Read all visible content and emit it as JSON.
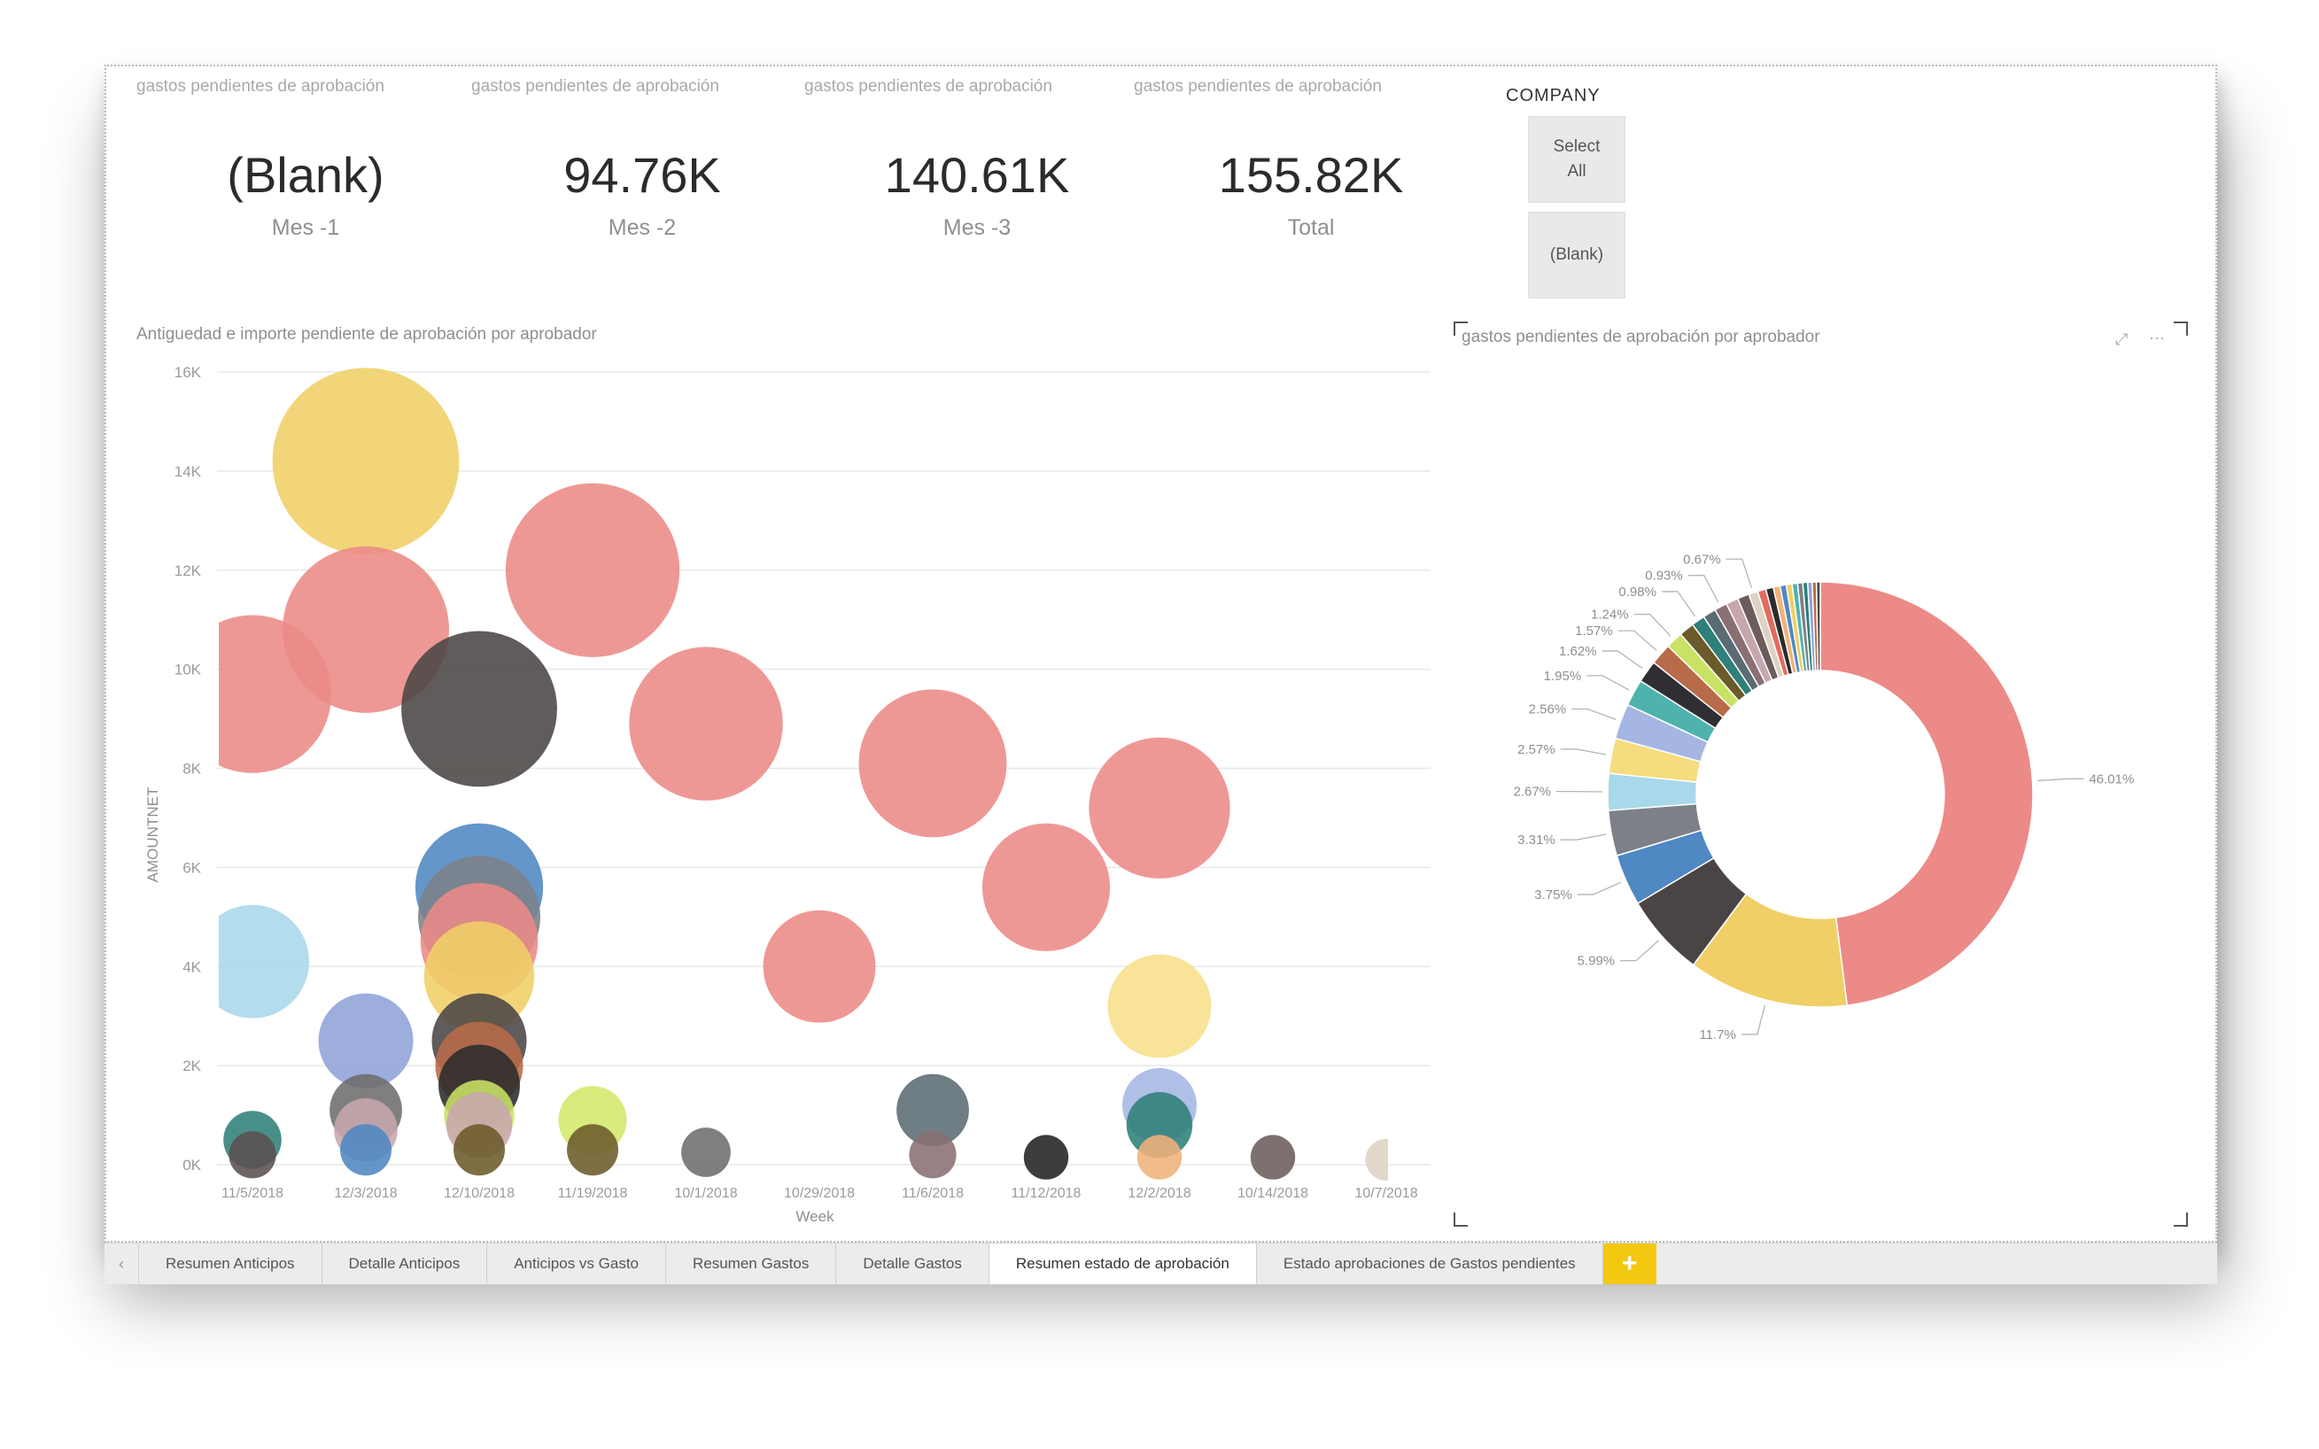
{
  "cards": [
    {
      "caption": "gastos pendientes de aprobación",
      "value": "(Blank)",
      "label": "Mes -1"
    },
    {
      "caption": "gastos pendientes de aprobación",
      "value": "94.76K",
      "label": "Mes -2"
    },
    {
      "caption": "gastos pendientes de aprobación",
      "value": "140.61K",
      "label": "Mes -3"
    },
    {
      "caption": "gastos pendientes de aprobación",
      "value": "155.82K",
      "label": "Total"
    }
  ],
  "slicer": {
    "title": "COMPANY",
    "options": [
      "Select All",
      "(Blank)"
    ]
  },
  "scatter": {
    "title": "Antiguedad e importe pendiente de aprobación por aprobador",
    "xlabel": "Week",
    "ylabel": "AMOUNTNET"
  },
  "donut": {
    "title": "gastos pendientes de aprobación por aprobador",
    "focus_icon": "focus-mode-icon",
    "more_icon": "more-options-icon"
  },
  "tabs": {
    "nav_icon": "chevron-left-icon",
    "items": [
      "Resumen Anticipos",
      "Detalle Anticipos",
      "Anticipos vs Gasto",
      "Resumen Gastos",
      "Detalle Gastos",
      "Resumen estado de aprobación",
      "Estado aprobaciones de Gastos pendientes"
    ],
    "active_index": 5,
    "add_label": "+"
  },
  "colors": {
    "salmon": "#ec8a87",
    "yellow": "#f0cf66",
    "dark": "#4a4544",
    "blue": "#4f88c2",
    "lightblue": "#a8d8ea",
    "accent": "#f2c811"
  },
  "chart_data": [
    {
      "type": "scatter",
      "title": "Antiguedad e importe pendiente de aprobación por aprobador",
      "xlabel": "Week",
      "ylabel": "AMOUNTNET",
      "ylim": [
        0,
        16000
      ],
      "y_ticks": [
        "0K",
        "2K",
        "4K",
        "6K",
        "8K",
        "10K",
        "12K",
        "14K",
        "16K"
      ],
      "x_ticks": [
        "11/5/2018",
        "12/3/2018",
        "12/10/2018",
        "11/19/2018",
        "10/1/2018",
        "10/29/2018",
        "11/6/2018",
        "11/12/2018",
        "12/2/2018",
        "10/14/2018",
        "10/7/2018"
      ],
      "grid": true,
      "points": [
        {
          "x": "11/5/2018",
          "y": 9500,
          "size": 9500,
          "color": "#ec8a87"
        },
        {
          "x": "11/5/2018",
          "y": 4100,
          "size": 4100,
          "color": "#a8d8ea"
        },
        {
          "x": "11/5/2018",
          "y": 500,
          "size": 500,
          "color": "#2f7f7a"
        },
        {
          "x": "11/5/2018",
          "y": 200,
          "size": 200,
          "color": "#5b5050"
        },
        {
          "x": "12/3/2018",
          "y": 14200,
          "size": 14200,
          "color": "#f0cf66"
        },
        {
          "x": "12/3/2018",
          "y": 10800,
          "size": 10800,
          "color": "#ec8a87"
        },
        {
          "x": "12/3/2018",
          "y": 2500,
          "size": 2500,
          "color": "#8fa3d8"
        },
        {
          "x": "12/3/2018",
          "y": 1100,
          "size": 1100,
          "color": "#6d6d6d"
        },
        {
          "x": "12/3/2018",
          "y": 700,
          "size": 700,
          "color": "#c7a7ae"
        },
        {
          "x": "12/3/2018",
          "y": 300,
          "size": 300,
          "color": "#4f88c2"
        },
        {
          "x": "12/10/2018",
          "y": 9200,
          "size": 9200,
          "color": "#4a4544"
        },
        {
          "x": "12/10/2018",
          "y": 5600,
          "size": 5600,
          "color": "#4f88c2"
        },
        {
          "x": "12/10/2018",
          "y": 5000,
          "size": 5000,
          "color": "#7d8187"
        },
        {
          "x": "12/10/2018",
          "y": 4500,
          "size": 4500,
          "color": "#ec8a87"
        },
        {
          "x": "12/10/2018",
          "y": 3800,
          "size": 3800,
          "color": "#f0cf66"
        },
        {
          "x": "12/10/2018",
          "y": 2500,
          "size": 2500,
          "color": "#4a4544"
        },
        {
          "x": "12/10/2018",
          "y": 2000,
          "size": 2000,
          "color": "#b86a49"
        },
        {
          "x": "12/10/2018",
          "y": 1600,
          "size": 1600,
          "color": "#2b2b2b"
        },
        {
          "x": "12/10/2018",
          "y": 1000,
          "size": 1000,
          "color": "#c9e265"
        },
        {
          "x": "12/10/2018",
          "y": 800,
          "size": 800,
          "color": "#c7a7ae"
        },
        {
          "x": "12/10/2018",
          "y": 300,
          "size": 300,
          "color": "#6b5a2a"
        },
        {
          "x": "11/19/2018",
          "y": 12000,
          "size": 12000,
          "color": "#ec8a87"
        },
        {
          "x": "11/19/2018",
          "y": 900,
          "size": 900,
          "color": "#d4e86a"
        },
        {
          "x": "11/19/2018",
          "y": 300,
          "size": 300,
          "color": "#6b5a2a"
        },
        {
          "x": "10/1/2018",
          "y": 8900,
          "size": 8900,
          "color": "#ec8a87"
        },
        {
          "x": "10/1/2018",
          "y": 250,
          "size": 250,
          "color": "#6d6d6d"
        },
        {
          "x": "10/29/2018",
          "y": 4000,
          "size": 4000,
          "color": "#ec8a87"
        },
        {
          "x": "11/6/2018",
          "y": 8100,
          "size": 8100,
          "color": "#ec8a87"
        },
        {
          "x": "11/6/2018",
          "y": 1100,
          "size": 1100,
          "color": "#5b6b73"
        },
        {
          "x": "11/6/2018",
          "y": 200,
          "size": 200,
          "color": "#8a6f73"
        },
        {
          "x": "11/12/2018",
          "y": 5600,
          "size": 5600,
          "color": "#ec8a87"
        },
        {
          "x": "11/12/2018",
          "y": 150,
          "size": 150,
          "color": "#222222"
        },
        {
          "x": "12/2/2018",
          "y": 7200,
          "size": 7200,
          "color": "#ec8a87"
        },
        {
          "x": "12/2/2018",
          "y": 3200,
          "size": 3200,
          "color": "#f7df8a"
        },
        {
          "x": "12/2/2018",
          "y": 1200,
          "size": 1200,
          "color": "#a5b6e2"
        },
        {
          "x": "12/2/2018",
          "y": 800,
          "size": 800,
          "color": "#2f7f7a"
        },
        {
          "x": "12/2/2018",
          "y": 150,
          "size": 150,
          "color": "#f0b27a"
        },
        {
          "x": "10/14/2018",
          "y": 150,
          "size": 150,
          "color": "#6d5c5c"
        },
        {
          "x": "10/7/2018",
          "y": 100,
          "size": 100,
          "color": "#ddd3c3"
        }
      ]
    },
    {
      "type": "pie",
      "title": "gastos pendientes de aprobación por aprobador",
      "donut": true,
      "slices": [
        {
          "label": "46.01%",
          "value": 46.01,
          "color": "#ec8a87"
        },
        {
          "label": "11.7%",
          "value": 11.7,
          "color": "#f0cf66"
        },
        {
          "label": "5.99%",
          "value": 5.99,
          "color": "#4a4544"
        },
        {
          "label": "3.75%",
          "value": 3.75,
          "color": "#4f88c2"
        },
        {
          "label": "3.31%",
          "value": 3.31,
          "color": "#7d8187"
        },
        {
          "label": "2.67%",
          "value": 2.67,
          "color": "#a8d8ea"
        },
        {
          "label": "2.57%",
          "value": 2.57,
          "color": "#f5dc7e"
        },
        {
          "label": "2.56%",
          "value": 2.56,
          "color": "#a5b6e2"
        },
        {
          "label": "1.95%",
          "value": 1.95,
          "color": "#4fb3ad"
        },
        {
          "label": "1.62%",
          "value": 1.62,
          "color": "#2f2f33"
        },
        {
          "label": "1.57%",
          "value": 1.57,
          "color": "#b86a49"
        },
        {
          "label": "1.24%",
          "value": 1.24,
          "color": "#c9e265"
        },
        {
          "label": "",
          "value": 1.1,
          "color": "#6b5a2a"
        },
        {
          "label": "0.98%",
          "value": 0.98,
          "color": "#2f7f7a"
        },
        {
          "label": "",
          "value": 0.95,
          "color": "#5b6b73"
        },
        {
          "label": "0.93%",
          "value": 0.93,
          "color": "#8a6f73"
        },
        {
          "label": "",
          "value": 0.9,
          "color": "#c7a7ae"
        },
        {
          "label": "",
          "value": 0.85,
          "color": "#6d5c5c"
        },
        {
          "label": "0.67%",
          "value": 0.67,
          "color": "#ddd3c3"
        },
        {
          "label": "",
          "value": 0.6,
          "color": "#e36b5f"
        },
        {
          "label": "",
          "value": 0.55,
          "color": "#2b2b2b"
        },
        {
          "label": "",
          "value": 0.5,
          "color": "#f0b27a"
        },
        {
          "label": "",
          "value": 0.45,
          "color": "#4f88c2"
        },
        {
          "label": "",
          "value": 0.42,
          "color": "#f0cf66"
        },
        {
          "label": "",
          "value": 0.4,
          "color": "#4fb3ad"
        },
        {
          "label": "",
          "value": 0.38,
          "color": "#7d8187"
        },
        {
          "label": "",
          "value": 0.35,
          "color": "#2f7f7a"
        },
        {
          "label": "",
          "value": 0.33,
          "color": "#8fa3d8"
        },
        {
          "label": "",
          "value": 0.3,
          "color": "#b86a49"
        },
        {
          "label": "",
          "value": 0.28,
          "color": "#4a4544"
        }
      ]
    }
  ]
}
